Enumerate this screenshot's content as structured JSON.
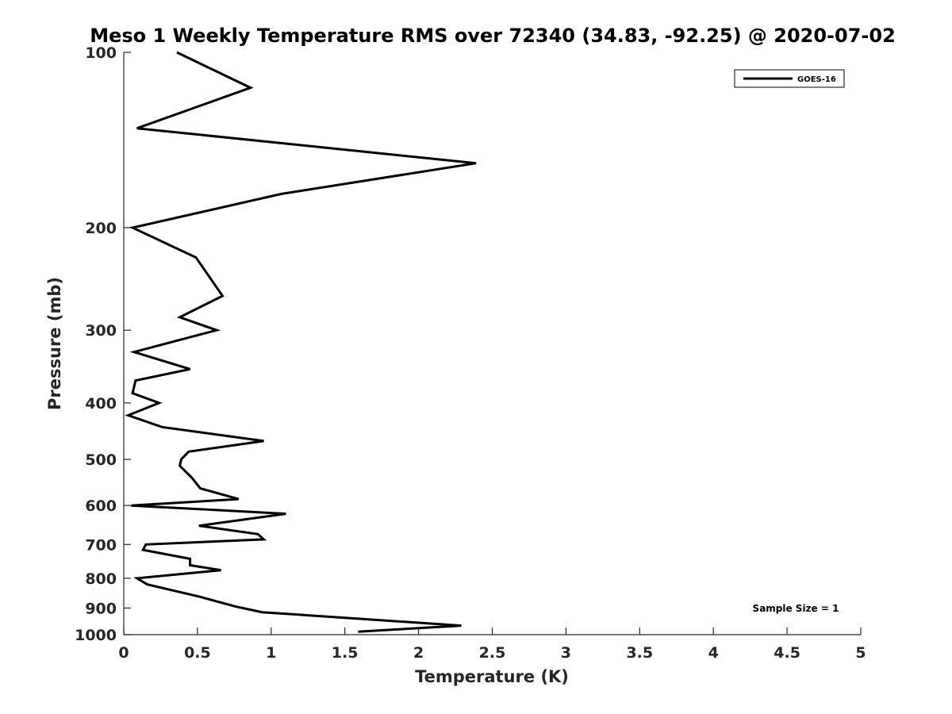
{
  "chart_data": {
    "type": "line",
    "title": "Meso 1 Weekly Temperature RMS over 72340 (34.83, -92.25) @ 2020-07-02",
    "xlabel": "Temperature (K)",
    "ylabel": "Pressure (mb)",
    "xlim": [
      0,
      5
    ],
    "ylim": [
      1000,
      100
    ],
    "yscale": "log",
    "y_reversed": true,
    "xticks": [
      "0",
      "0.5",
      "1",
      "1.5",
      "2",
      "2.5",
      "3",
      "3.5",
      "4",
      "4.5",
      "5"
    ],
    "yticks": [
      "100",
      "200",
      "300",
      "400",
      "500",
      "600",
      "700",
      "800",
      "900",
      "1000"
    ],
    "grid": false,
    "legend_position": "top-right",
    "annotation": "Sample Size = 1",
    "series": [
      {
        "name": "GOES-16",
        "color": "#000000",
        "points": [
          [
            0.36,
            100
          ],
          [
            0.86,
            115
          ],
          [
            0.09,
            135
          ],
          [
            2.39,
            155
          ],
          [
            1.07,
            175
          ],
          [
            0.06,
            200
          ],
          [
            0.49,
            225
          ],
          [
            0.67,
            262
          ],
          [
            0.38,
            285
          ],
          [
            0.63,
            300
          ],
          [
            0.07,
            327
          ],
          [
            0.45,
            350
          ],
          [
            0.08,
            366
          ],
          [
            0.06,
            385
          ],
          [
            0.24,
            400
          ],
          [
            0.03,
            420
          ],
          [
            0.26,
            440
          ],
          [
            0.95,
            465
          ],
          [
            0.44,
            485
          ],
          [
            0.39,
            500
          ],
          [
            0.38,
            513
          ],
          [
            0.46,
            537
          ],
          [
            0.52,
            561
          ],
          [
            0.78,
            585
          ],
          [
            0.05,
            600
          ],
          [
            1.1,
            620
          ],
          [
            0.51,
            650
          ],
          [
            0.91,
            672
          ],
          [
            0.95,
            686
          ],
          [
            0.15,
            700
          ],
          [
            0.13,
            715
          ],
          [
            0.45,
            741
          ],
          [
            0.45,
            760
          ],
          [
            0.66,
            775
          ],
          [
            0.09,
            800
          ],
          [
            0.16,
            820
          ],
          [
            0.51,
            860
          ],
          [
            0.76,
            895
          ],
          [
            0.94,
            915
          ],
          [
            2.29,
            965
          ],
          [
            1.59,
            988
          ]
        ]
      }
    ]
  }
}
